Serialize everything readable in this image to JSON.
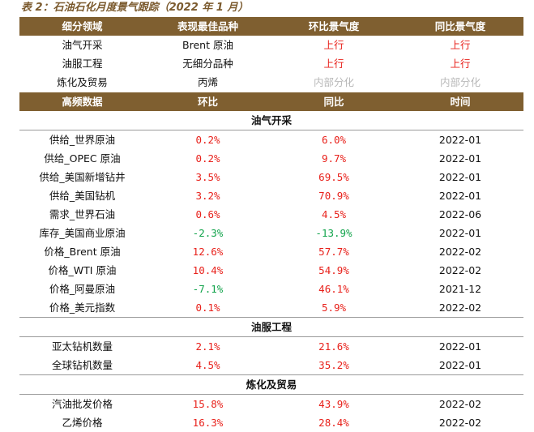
{
  "caption": "表 2：石油石化月度景气跟踪（2022 年 1 月）",
  "top_table": {
    "headers": [
      "细分领域",
      "表现最佳品种",
      "环比景气度",
      "同比景气度"
    ],
    "rows": [
      {
        "field": "油气开采",
        "best": "Brent 原油",
        "mom": "上行",
        "yoy": "上行"
      },
      {
        "field": "油服工程",
        "best": "无细分品种",
        "mom": "上行",
        "yoy": "上行"
      },
      {
        "field": "炼化及贸易",
        "best": "丙烯",
        "mom": "内部分化",
        "yoy": "内部分化"
      }
    ]
  },
  "hf_table": {
    "headers": [
      "高频数据",
      "环比",
      "同比",
      "时间"
    ],
    "sections": [
      {
        "title": "油气开采",
        "rows": [
          {
            "name": "供给_世界原油",
            "mom": "0.2%",
            "yoy": "6.0%",
            "time": "2022-01"
          },
          {
            "name": "供给_OPEC 原油",
            "mom": "0.2%",
            "yoy": "9.7%",
            "time": "2022-01"
          },
          {
            "name": "供给_美国新增钻井",
            "mom": "3.5%",
            "yoy": "69.5%",
            "time": "2022-01"
          },
          {
            "name": "供给_美国钻机",
            "mom": "3.2%",
            "yoy": "70.9%",
            "time": "2022-01"
          },
          {
            "name": "需求_世界石油",
            "mom": "0.6%",
            "yoy": "4.5%",
            "time": "2022-06"
          },
          {
            "name": "库存_美国商业原油",
            "mom": "-2.3%",
            "yoy": "-13.9%",
            "time": "2022-01"
          },
          {
            "name": "价格_Brent 原油",
            "mom": "12.6%",
            "yoy": "57.7%",
            "time": "2022-02"
          },
          {
            "name": "价格_WTI 原油",
            "mom": "10.4%",
            "yoy": "54.9%",
            "time": "2022-02"
          },
          {
            "name": "价格_阿曼原油",
            "mom": "-7.1%",
            "yoy": "46.1%",
            "time": "2021-12"
          },
          {
            "name": "价格_美元指数",
            "mom": "0.1%",
            "yoy": "5.9%",
            "time": "2022-02"
          }
        ]
      },
      {
        "title": "油服工程",
        "rows": [
          {
            "name": "亚太钻机数量",
            "mom": "2.1%",
            "yoy": "21.6%",
            "time": "2022-01"
          },
          {
            "name": "全球钻机数量",
            "mom": "4.5%",
            "yoy": "35.2%",
            "time": "2022-01"
          }
        ]
      },
      {
        "title": "炼化及贸易",
        "rows": [
          {
            "name": "汽油批发价格",
            "mom": "15.8%",
            "yoy": "43.9%",
            "time": "2022-02"
          },
          {
            "name": "乙烯价格",
            "mom": "16.3%",
            "yoy": "28.4%",
            "time": "2022-02"
          }
        ]
      }
    ]
  },
  "colors": {
    "header_bg": "#7f5f30",
    "up": "#e8211b",
    "down": "#10a34a",
    "mixed": "#b8b8b8"
  }
}
